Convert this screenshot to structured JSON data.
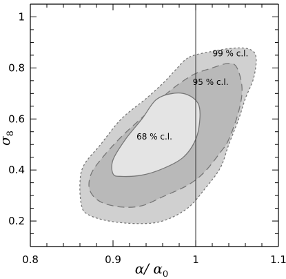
{
  "chart_data": {
    "type": "contour",
    "xlim": [
      0.8,
      1.1
    ],
    "ylim": [
      0.1,
      1.05
    ],
    "xticks": [
      0.8,
      0.9,
      1.0,
      1.1
    ],
    "xtick_labels": [
      "0.8",
      "0.9",
      "1",
      "1.1"
    ],
    "yticks": [
      0.2,
      0.4,
      0.6,
      0.8,
      1.0
    ],
    "ytick_labels": [
      "0.2",
      "0.4",
      "0.6",
      "0.8",
      "1"
    ],
    "xlabel": {
      "main": "α/ α",
      "sub": "0"
    },
    "ylabel": {
      "main": "σ",
      "sub": "8"
    },
    "reference_line": {
      "x": 1.0
    },
    "contours": [
      {
        "label": "99 % c.l.",
        "fill": "#d0d0d0",
        "style": "dotted",
        "label_pos": [
          1.042,
          0.845
        ],
        "points": [
          [
            0.992,
            0.842
          ],
          [
            1.02,
            0.865
          ],
          [
            1.048,
            0.878
          ],
          [
            1.066,
            0.872
          ],
          [
            1.073,
            0.84
          ],
          [
            1.07,
            0.76
          ],
          [
            1.06,
            0.68
          ],
          [
            1.052,
            0.6
          ],
          [
            1.04,
            0.5
          ],
          [
            1.03,
            0.41
          ],
          [
            1.012,
            0.33
          ],
          [
            0.99,
            0.25
          ],
          [
            0.96,
            0.2
          ],
          [
            0.93,
            0.19
          ],
          [
            0.895,
            0.2
          ],
          [
            0.87,
            0.225
          ],
          [
            0.862,
            0.26
          ],
          [
            0.86,
            0.35
          ],
          [
            0.865,
            0.42
          ],
          [
            0.885,
            0.5
          ],
          [
            0.91,
            0.6
          ],
          [
            0.94,
            0.68
          ],
          [
            0.962,
            0.745
          ],
          [
            0.975,
            0.79
          ]
        ]
      },
      {
        "label": "95 % c.l.",
        "fill": "#b9b9b9",
        "style": "dashed",
        "label_pos": [
          1.018,
          0.733
        ],
        "points": [
          [
            0.995,
            0.77
          ],
          [
            1.02,
            0.8
          ],
          [
            1.04,
            0.818
          ],
          [
            1.05,
            0.8
          ],
          [
            1.056,
            0.72
          ],
          [
            1.052,
            0.63
          ],
          [
            1.04,
            0.52
          ],
          [
            1.03,
            0.47
          ],
          [
            1.01,
            0.39
          ],
          [
            0.99,
            0.34
          ],
          [
            0.96,
            0.295
          ],
          [
            0.935,
            0.26
          ],
          [
            0.91,
            0.255
          ],
          [
            0.885,
            0.275
          ],
          [
            0.872,
            0.32
          ],
          [
            0.873,
            0.38
          ],
          [
            0.885,
            0.44
          ],
          [
            0.91,
            0.53
          ],
          [
            0.94,
            0.62
          ],
          [
            0.965,
            0.7
          ]
        ]
      },
      {
        "label": "68 % c.l.",
        "fill": "#e4e4e4",
        "style": "solid",
        "label_pos": [
          0.95,
          0.52
        ],
        "points": [
          [
            0.952,
            0.675
          ],
          [
            0.972,
            0.7
          ],
          [
            0.99,
            0.695
          ],
          [
            1.003,
            0.66
          ],
          [
            1.005,
            0.6
          ],
          [
            1.0,
            0.52
          ],
          [
            0.985,
            0.45
          ],
          [
            0.96,
            0.405
          ],
          [
            0.935,
            0.38
          ],
          [
            0.91,
            0.375
          ],
          [
            0.9,
            0.385
          ],
          [
            0.9,
            0.44
          ],
          [
            0.915,
            0.52
          ],
          [
            0.935,
            0.6
          ]
        ]
      }
    ]
  }
}
